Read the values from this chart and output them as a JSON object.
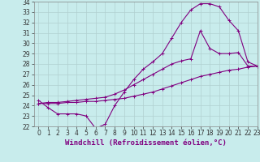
{
  "xlabel": "Windchill (Refroidissement éolien,°C)",
  "xlim": [
    -0.5,
    23
  ],
  "ylim": [
    22,
    34
  ],
  "yticks": [
    22,
    23,
    24,
    25,
    26,
    27,
    28,
    29,
    30,
    31,
    32,
    33,
    34
  ],
  "xticks": [
    0,
    1,
    2,
    3,
    4,
    5,
    6,
    7,
    8,
    9,
    10,
    11,
    12,
    13,
    14,
    15,
    16,
    17,
    18,
    19,
    20,
    21,
    22,
    23
  ],
  "background_color": "#c8ecec",
  "grid_color": "#b0d0d0",
  "line_color": "#800080",
  "line1_x": [
    0,
    1,
    2,
    3,
    4,
    5,
    6,
    7,
    8,
    9,
    10,
    11,
    12,
    13,
    14,
    15,
    16,
    17,
    18,
    19,
    20,
    21,
    22,
    23
  ],
  "line1_y": [
    24.5,
    23.8,
    23.2,
    23.2,
    23.2,
    23.0,
    21.8,
    22.2,
    24.0,
    25.3,
    26.5,
    27.5,
    28.2,
    29.0,
    30.5,
    32.0,
    33.2,
    33.8,
    33.8,
    33.5,
    32.2,
    31.2,
    28.2,
    27.8
  ],
  "line2_x": [
    0,
    1,
    2,
    3,
    4,
    5,
    6,
    7,
    8,
    9,
    10,
    11,
    12,
    13,
    14,
    15,
    16,
    17,
    18,
    19,
    20,
    21,
    22,
    23
  ],
  "line2_y": [
    24.2,
    24.2,
    24.2,
    24.3,
    24.3,
    24.4,
    24.4,
    24.5,
    24.6,
    24.7,
    24.9,
    25.1,
    25.3,
    25.6,
    25.9,
    26.2,
    26.5,
    26.8,
    27.0,
    27.2,
    27.4,
    27.5,
    27.7,
    27.8
  ],
  "line3_x": [
    0,
    1,
    2,
    3,
    4,
    5,
    6,
    7,
    8,
    9,
    10,
    11,
    12,
    13,
    14,
    15,
    16,
    17,
    18,
    19,
    20,
    21,
    22,
    23
  ],
  "line3_y": [
    24.2,
    24.3,
    24.3,
    24.4,
    24.5,
    24.6,
    24.7,
    24.8,
    25.1,
    25.5,
    26.0,
    26.5,
    27.0,
    27.5,
    28.0,
    28.3,
    28.5,
    31.2,
    29.5,
    29.0,
    29.0,
    29.1,
    27.8,
    27.8
  ],
  "marker": "+",
  "markersize": 3,
  "linewidth": 0.8,
  "xlabel_fontsize": 6.5,
  "tick_fontsize": 5.5
}
